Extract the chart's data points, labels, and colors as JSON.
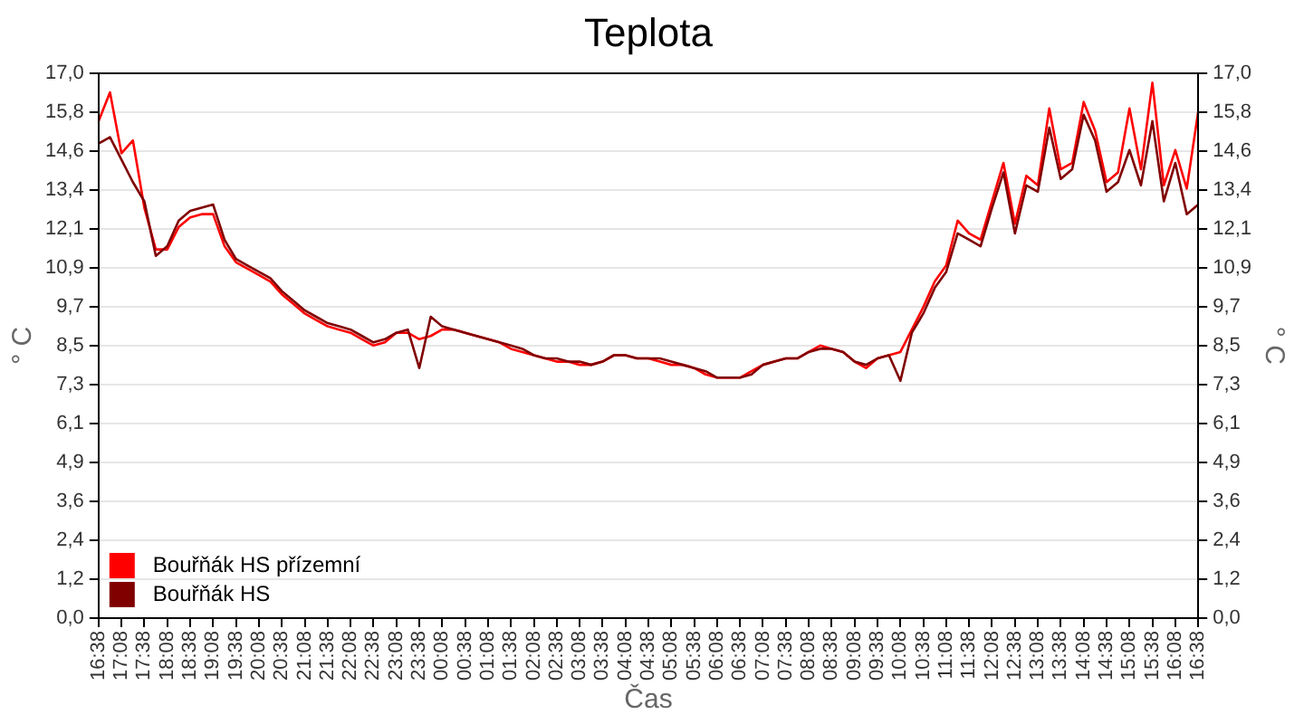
{
  "chart_data": {
    "type": "line",
    "title": "Teplota",
    "xlabel": "Čas",
    "ylabel": "° C",
    "y2label": "° C",
    "categories": [
      "16:38",
      null,
      "17:08",
      null,
      "17:38",
      null,
      "18:08",
      null,
      "18:38",
      null,
      "19:08",
      null,
      "19:38",
      null,
      "20:08",
      null,
      "20:38",
      null,
      "21:08",
      null,
      "21:38",
      null,
      "22:08",
      null,
      "22:38",
      null,
      "23:08",
      null,
      "23:38",
      null,
      "00:08",
      null,
      "00:38",
      null,
      "01:08",
      null,
      "01:38",
      null,
      "02:08",
      null,
      "02:38",
      null,
      "03:08",
      null,
      "03:38",
      null,
      "04:08",
      null,
      "04:38",
      null,
      "05:08",
      null,
      "05:38",
      null,
      "06:08",
      null,
      "06:38",
      null,
      "07:08",
      null,
      "07:38",
      null,
      "08:08",
      null,
      "08:38",
      null,
      "09:08",
      null,
      "09:38",
      null,
      "10:08",
      null,
      "10:38",
      null,
      "11:08",
      null,
      "11:38",
      null,
      "12:08",
      null,
      "12:38",
      null,
      "13:08",
      null,
      "13:38",
      null,
      "14:08",
      null,
      "14:38",
      null,
      "15:08",
      null,
      "15:38",
      null,
      "16:08",
      null,
      "16:38"
    ],
    "series": [
      {
        "name": "Bouřňák HS přízemní",
        "color": "#ff0000",
        "values": [
          15.5,
          16.4,
          14.5,
          14.9,
          12.8,
          11.5,
          11.5,
          12.2,
          12.5,
          12.6,
          12.6,
          11.6,
          11.1,
          10.9,
          10.7,
          10.5,
          10.1,
          9.8,
          9.5,
          9.3,
          9.1,
          9.0,
          8.9,
          8.7,
          8.5,
          8.6,
          8.9,
          8.9,
          8.7,
          8.8,
          9.0,
          9.0,
          8.9,
          8.8,
          8.7,
          8.6,
          8.4,
          8.3,
          8.2,
          8.1,
          8.0,
          8.0,
          7.9,
          7.9,
          8.0,
          8.2,
          8.2,
          8.1,
          8.1,
          8.0,
          7.9,
          7.9,
          7.8,
          7.6,
          7.5,
          7.5,
          7.5,
          7.7,
          7.9,
          8.0,
          8.1,
          8.1,
          8.3,
          8.5,
          8.4,
          8.3,
          8.0,
          7.8,
          8.1,
          8.2,
          8.3,
          9.0,
          9.7,
          10.5,
          11.0,
          12.4,
          12.0,
          11.8,
          13.0,
          14.2,
          12.3,
          13.8,
          13.5,
          15.9,
          14.0,
          14.2,
          16.1,
          15.2,
          13.6,
          13.9,
          15.9,
          14.0,
          16.7,
          13.5,
          14.6,
          13.4,
          15.8
        ]
      },
      {
        "name": "Bouřňák HS",
        "color": "#800000",
        "values": [
          14.8,
          15.0,
          14.3,
          13.6,
          13.0,
          11.3,
          11.6,
          12.4,
          12.7,
          12.8,
          12.9,
          11.8,
          11.2,
          11.0,
          10.8,
          10.6,
          10.2,
          9.9,
          9.6,
          9.4,
          9.2,
          9.1,
          9.0,
          8.8,
          8.6,
          8.7,
          8.9,
          9.0,
          7.8,
          9.4,
          9.1,
          9.0,
          8.9,
          8.8,
          8.7,
          8.6,
          8.5,
          8.4,
          8.2,
          8.1,
          8.1,
          8.0,
          8.0,
          7.9,
          8.0,
          8.2,
          8.2,
          8.1,
          8.1,
          8.1,
          8.0,
          7.9,
          7.8,
          7.7,
          7.5,
          7.5,
          7.5,
          7.6,
          7.9,
          8.0,
          8.1,
          8.1,
          8.3,
          8.4,
          8.4,
          8.3,
          8.0,
          7.9,
          8.1,
          8.2,
          7.4,
          8.9,
          9.5,
          10.3,
          10.8,
          12.0,
          11.8,
          11.6,
          12.8,
          13.9,
          12.0,
          13.5,
          13.3,
          15.3,
          13.7,
          14.0,
          15.7,
          14.9,
          13.3,
          13.6,
          14.6,
          13.5,
          15.5,
          13.0,
          14.2,
          12.6,
          12.9
        ]
      }
    ],
    "ylim": [
      0,
      17
    ],
    "yticks": [
      {
        "value": 0,
        "label": "0,0"
      },
      {
        "value": 1.214,
        "label": "1,2"
      },
      {
        "value": 2.429,
        "label": "2,4"
      },
      {
        "value": 3.643,
        "label": "3,6"
      },
      {
        "value": 4.857,
        "label": "4,9"
      },
      {
        "value": 6.071,
        "label": "6,1"
      },
      {
        "value": 7.286,
        "label": "7,3"
      },
      {
        "value": 8.5,
        "label": "8,5"
      },
      {
        "value": 9.714,
        "label": "9,7"
      },
      {
        "value": 10.929,
        "label": "10,9"
      },
      {
        "value": 12.143,
        "label": "12,1"
      },
      {
        "value": 13.357,
        "label": "13,4"
      },
      {
        "value": 14.571,
        "label": "14,6"
      },
      {
        "value": 15.786,
        "label": "15,8"
      },
      {
        "value": 17,
        "label": "17,0"
      }
    ],
    "y2lim": [
      0,
      17
    ],
    "y2ticks": [
      {
        "value": 0,
        "label": "0,0"
      },
      {
        "value": 1.214,
        "label": "1,2"
      },
      {
        "value": 2.429,
        "label": "2,4"
      },
      {
        "value": 3.643,
        "label": "3,6"
      },
      {
        "value": 4.857,
        "label": "4,9"
      },
      {
        "value": 6.071,
        "label": "6,1"
      },
      {
        "value": 7.286,
        "label": "7,3"
      },
      {
        "value": 8.5,
        "label": "8,5"
      },
      {
        "value": 9.714,
        "label": "9,7"
      },
      {
        "value": 10.929,
        "label": "10,9"
      },
      {
        "value": 12.143,
        "label": "12,1"
      },
      {
        "value": 13.357,
        "label": "13,4"
      },
      {
        "value": 14.571,
        "label": "14,6"
      },
      {
        "value": 15.786,
        "label": "15,8"
      },
      {
        "value": 17,
        "label": "17,0"
      }
    ],
    "grid": "y",
    "legend": "bottom left",
    "marker": "none",
    "line_style": "solid"
  }
}
